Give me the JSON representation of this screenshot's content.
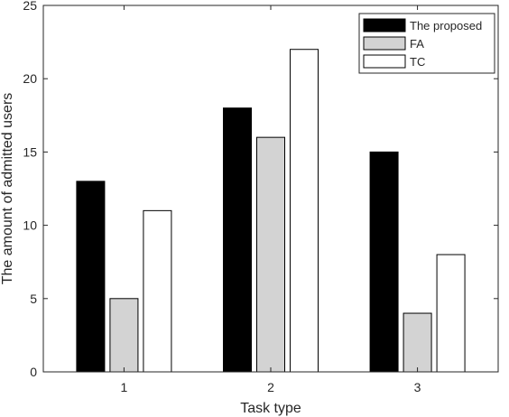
{
  "chart_data": {
    "type": "bar",
    "title": "",
    "xlabel": "Task type",
    "ylabel": "The amount of admitted users",
    "categories": [
      "1",
      "2",
      "3"
    ],
    "ylim": [
      0,
      25
    ],
    "yticks": [
      0,
      5,
      10,
      15,
      20,
      25
    ],
    "grid": false,
    "legend_position": "top-right",
    "series": [
      {
        "name": "The proposed",
        "values": [
          13,
          18,
          15
        ],
        "color": "#000000"
      },
      {
        "name": "FA",
        "values": [
          5,
          16,
          4
        ],
        "color": "#d3d3d3"
      },
      {
        "name": "TC",
        "values": [
          11,
          22,
          8
        ],
        "color": "#ffffff"
      }
    ]
  }
}
